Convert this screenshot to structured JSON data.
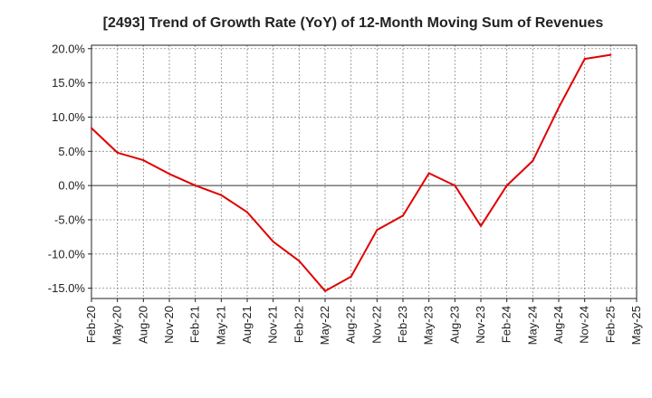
{
  "chart_data": {
    "type": "line",
    "title": "[2493]  Trend of Growth Rate (YoY) of 12-Month Moving Sum of Revenues",
    "xlabel": "",
    "ylabel": "",
    "x_tick_labels": [
      "Feb-20",
      "May-20",
      "Aug-20",
      "Nov-20",
      "Feb-21",
      "May-21",
      "Aug-21",
      "Nov-21",
      "Feb-22",
      "May-22",
      "Aug-22",
      "Nov-22",
      "Feb-23",
      "May-23",
      "Aug-23",
      "Nov-23",
      "Feb-24",
      "May-24",
      "Aug-24",
      "Nov-24",
      "Feb-25",
      "May-25"
    ],
    "y_tick_labels": [
      "20.0%",
      "15.0%",
      "10.0%",
      "5.0%",
      "0.0%",
      "-5.0%",
      "-10.0%",
      "-15.0%"
    ],
    "ylim": [
      -16.5,
      20.5
    ],
    "grid": true,
    "series": [
      {
        "color": "#e00000",
        "x": [
          "Feb-20",
          "May-20",
          "Aug-20",
          "Nov-20",
          "Feb-21",
          "May-21",
          "Aug-21",
          "Nov-21",
          "Feb-22",
          "May-22",
          "Aug-22",
          "Nov-22",
          "Feb-23",
          "May-23",
          "Aug-23",
          "Nov-23",
          "Feb-24",
          "May-24",
          "Aug-24",
          "Nov-24",
          "Feb-25"
        ],
        "values": [
          8.4,
          4.8,
          3.7,
          1.7,
          0.0,
          -1.4,
          -3.9,
          -8.2,
          -11.0,
          -15.4,
          -13.3,
          -6.5,
          -4.4,
          1.8,
          0.0,
          -5.9,
          0.0,
          3.6,
          11.4,
          18.5,
          19.1
        ]
      }
    ]
  }
}
